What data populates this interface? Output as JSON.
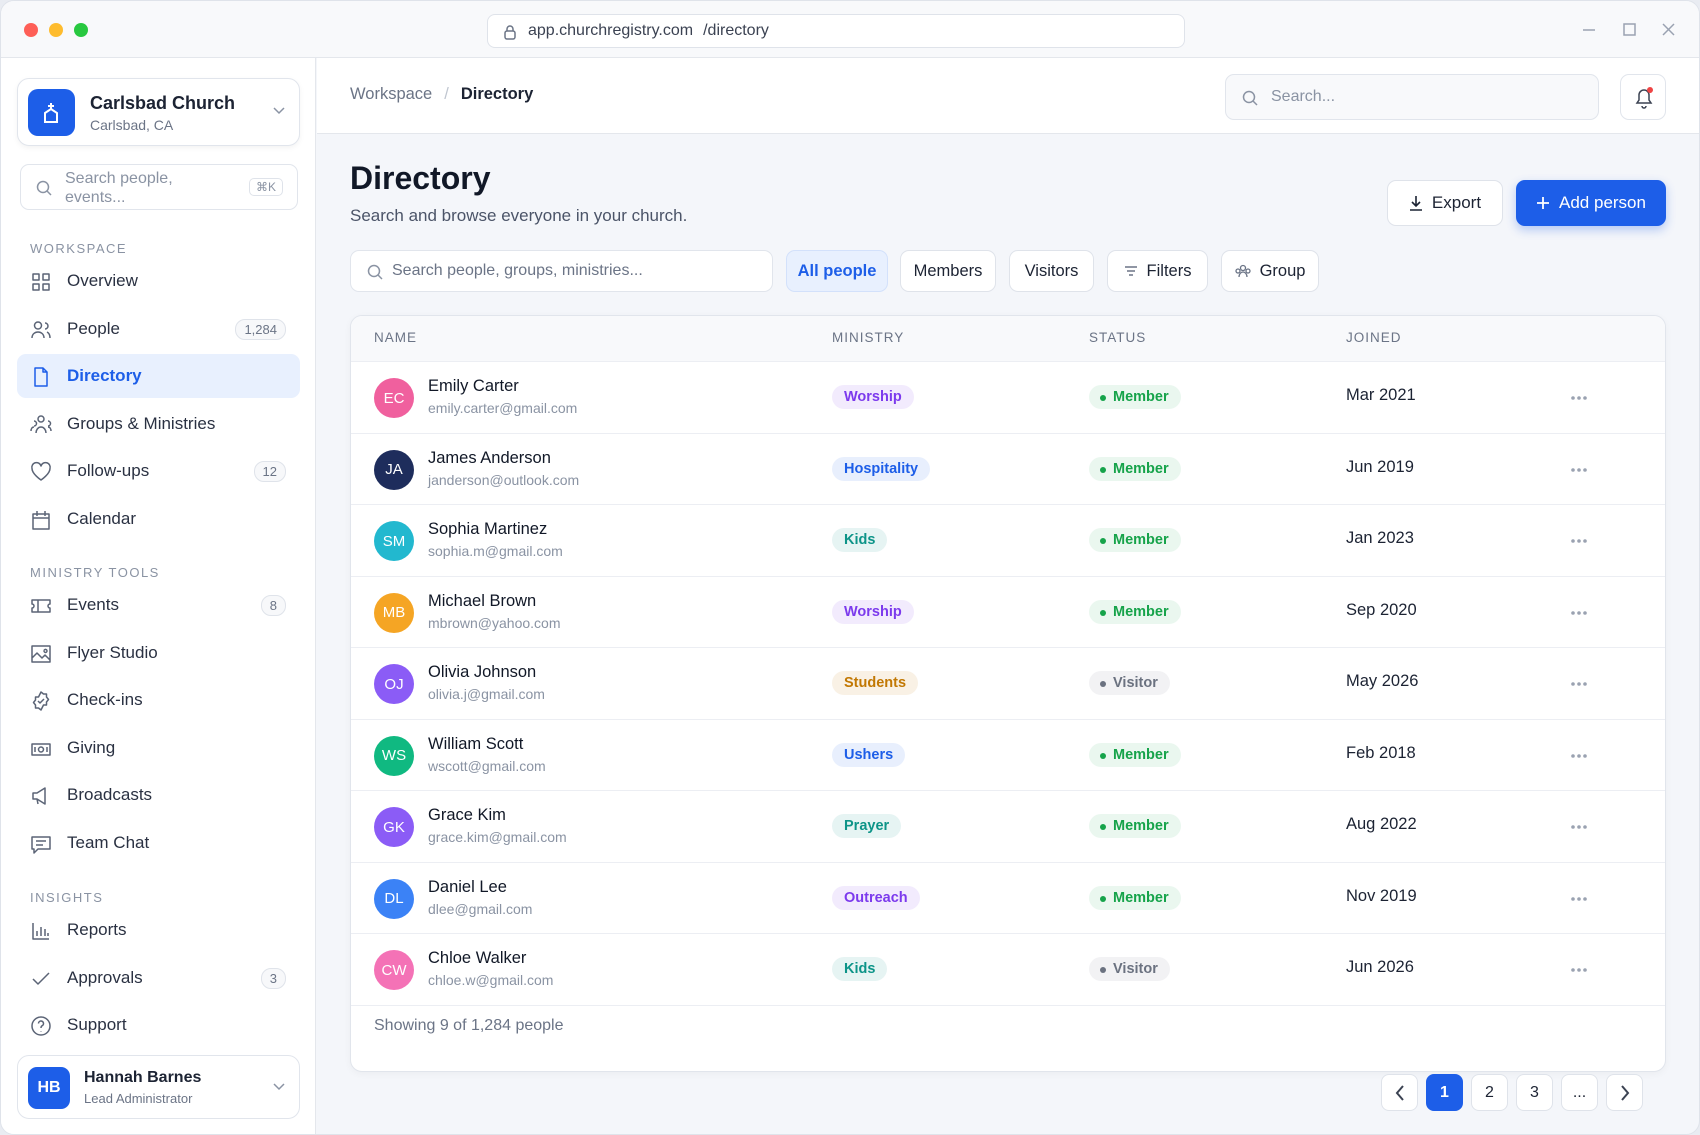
{
  "browser": {
    "host": "app.churchregistry.com",
    "path": "/directory"
  },
  "sidebar": {
    "org": {
      "name": "Carlsbad Church",
      "location": "Carlsbad, CA"
    },
    "search": {
      "placeholder": "Search people, events...",
      "shortcut": "⌘K"
    },
    "sections": [
      {
        "title": "WORKSPACE",
        "items": [
          {
            "label": "Overview"
          },
          {
            "label": "People",
            "badge": "1,284"
          },
          {
            "label": "Directory"
          },
          {
            "label": "Groups & Ministries"
          },
          {
            "label": "Follow-ups",
            "badge": "12"
          },
          {
            "label": "Calendar"
          }
        ]
      },
      {
        "title": "MINISTRY TOOLS",
        "items": [
          {
            "label": "Events",
            "badge": "8"
          },
          {
            "label": "Flyer Studio"
          },
          {
            "label": "Check-ins"
          },
          {
            "label": "Giving"
          },
          {
            "label": "Broadcasts"
          },
          {
            "label": "Team Chat"
          }
        ]
      },
      {
        "title": "INSIGHTS",
        "items": [
          {
            "label": "Reports"
          },
          {
            "label": "Approvals",
            "badge": "3"
          },
          {
            "label": "Support"
          }
        ]
      }
    ],
    "user": {
      "initials": "HB",
      "name": "Hannah Barnes",
      "role": "Lead Administrator"
    }
  },
  "header": {
    "breadcrumb": [
      "Workspace",
      "Directory"
    ],
    "search_placeholder": "Search..."
  },
  "page": {
    "title": "Directory",
    "subtitle": "Search and browse everyone in your church.",
    "export": "Export",
    "add": "Add person"
  },
  "filters": {
    "search_placeholder": "Search people, groups, ministries...",
    "tabs": [
      "All people",
      "Members",
      "Visitors",
      "Filters",
      "Group"
    ]
  },
  "table": {
    "columns": [
      "NAME",
      "MINISTRY",
      "STATUS",
      "JOINED"
    ],
    "rows": [
      {
        "initials": "EC",
        "name": "Emily Carter",
        "email": "emily.carter@gmail.com",
        "ministry": "Worship",
        "status": "Member",
        "joined": "Mar 2021",
        "avatar_color": "#f0609e",
        "ministry_color": "#7c3aed",
        "status_color": "#16a34a"
      },
      {
        "initials": "JA",
        "name": "James Anderson",
        "email": "janderson@outlook.com",
        "ministry": "Hospitality",
        "status": "Member",
        "joined": "Jun 2019",
        "avatar_color": "#1e2d5c",
        "ministry_color": "#1d5ee8",
        "status_color": "#16a34a"
      },
      {
        "initials": "SM",
        "name": "Sophia Martinez",
        "email": "sophia.m@gmail.com",
        "ministry": "Kids",
        "status": "Member",
        "joined": "Jan 2023",
        "avatar_color": "#22b8cf",
        "ministry_color": "#0d9488",
        "status_color": "#16a34a"
      },
      {
        "initials": "MB",
        "name": "Michael Brown",
        "email": "mbrown@yahoo.com",
        "ministry": "Worship",
        "status": "Member",
        "joined": "Sep 2020",
        "avatar_color": "#f5a524",
        "ministry_color": "#7c3aed",
        "status_color": "#16a34a"
      },
      {
        "initials": "OJ",
        "name": "Olivia Johnson",
        "email": "olivia.j@gmail.com",
        "ministry": "Students",
        "status": "Visitor",
        "joined": "May 2026",
        "avatar_color": "#8b5cf6",
        "ministry_color": "#c27803",
        "status_color": "#6b7280"
      },
      {
        "initials": "WS",
        "name": "William Scott",
        "email": "wscott@gmail.com",
        "ministry": "Ushers",
        "status": "Member",
        "joined": "Feb 2018",
        "avatar_color": "#10b981",
        "ministry_color": "#1d5ee8",
        "status_color": "#16a34a"
      },
      {
        "initials": "GK",
        "name": "Grace Kim",
        "email": "grace.kim@gmail.com",
        "ministry": "Prayer",
        "status": "Member",
        "joined": "Aug 2022",
        "avatar_color": "#8b5cf6",
        "ministry_color": "#0d9488",
        "status_color": "#16a34a"
      },
      {
        "initials": "DL",
        "name": "Daniel Lee",
        "email": "dlee@gmail.com",
        "ministry": "Outreach",
        "status": "Member",
        "joined": "Nov 2019",
        "avatar_color": "#3b82f6",
        "ministry_color": "#7c3aed",
        "status_color": "#16a34a"
      },
      {
        "initials": "CW",
        "name": "Chloe Walker",
        "email": "chloe.w@gmail.com",
        "ministry": "Kids",
        "status": "Visitor",
        "joined": "Jun 2026",
        "avatar_color": "#f472b6",
        "ministry_color": "#0d9488",
        "status_color": "#6b7280"
      }
    ]
  },
  "footer": {
    "summary": "Showing 9 of 1,284 people",
    "pages": [
      "1",
      "2",
      "3",
      "..."
    ]
  }
}
